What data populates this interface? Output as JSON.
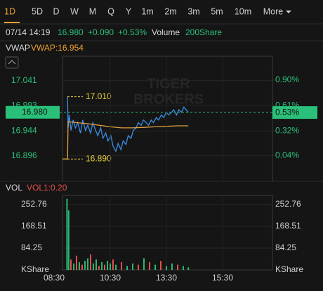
{
  "tabs": [
    "1D",
    "5D",
    "D",
    "W",
    "M",
    "Q",
    "Y",
    "1m",
    "2m",
    "3m",
    "5m",
    "10m",
    "More"
  ],
  "header": {
    "datetime": "07/14 14:19",
    "price": "16.980",
    "change": "+0.090",
    "change_pct": "+0.53%",
    "volume_label": "Volume",
    "volume": "200Share"
  },
  "watermark": [
    "TIGER",
    "BROKERS"
  ],
  "chart_data": [
    {
      "type": "line",
      "indicator": "VWAP",
      "indicator_value": "VWAP:16.954",
      "xlim": [
        0,
        400
      ],
      "ylim": [
        16.847,
        17.088
      ],
      "yticks": [
        17.041,
        16.993,
        16.944,
        16.896
      ],
      "y2lim": [
        -0.255,
        1.172
      ],
      "y2ticks": [
        {
          "value": 0.9,
          "label": "0.90%"
        },
        {
          "value": 0.61,
          "label": "0.61%"
        },
        {
          "value": 0.32,
          "label": "0.32%"
        },
        {
          "value": 0.04,
          "label": "0.04%"
        }
      ],
      "grid": true,
      "high": {
        "value": 17.01,
        "label": "17.010"
      },
      "low": {
        "value": 16.89,
        "label": "16.890"
      },
      "last": {
        "value": 16.98,
        "label": "16.980"
      },
      "last_pct": {
        "value": 0.53,
        "label": "0.53%"
      },
      "series": [
        {
          "name": "Price",
          "color": "#3a8ee6",
          "x": [
            24,
            25,
            27,
            30,
            34,
            38,
            42,
            47,
            51,
            56,
            60,
            65,
            69,
            74,
            78,
            83,
            87,
            92,
            96,
            101,
            105,
            110,
            114,
            119,
            123,
            128,
            132,
            137,
            141,
            146,
            150,
            155,
            159,
            164,
            168,
            173,
            177,
            182,
            186,
            191,
            195,
            200,
            204,
            209,
            213,
            218,
            222,
            227,
            231,
            235,
            239
          ],
          "values": [
            17.01,
            16.95,
            16.975,
            16.945,
            16.965,
            16.95,
            16.96,
            16.94,
            16.965,
            16.945,
            16.955,
            16.94,
            16.96,
            16.945,
            16.935,
            16.95,
            16.93,
            16.94,
            16.925,
            16.935,
            16.915,
            16.905,
            16.92,
            16.908,
            16.925,
            16.918,
            16.935,
            16.93,
            16.945,
            16.95,
            16.96,
            16.955,
            16.965,
            16.96,
            16.955,
            16.965,
            16.96,
            16.97,
            16.965,
            16.975,
            16.97,
            16.98,
            16.975,
            16.98,
            16.985,
            16.975,
            16.985,
            16.98,
            16.99,
            16.985,
            16.98
          ]
        },
        {
          "name": "VWAP",
          "color": "#e0a040",
          "x": [
            15,
            24,
            25,
            40,
            60,
            80,
            100,
            120,
            140,
            160,
            180,
            200,
            220,
            239
          ],
          "values": [
            16.89,
            16.89,
            16.962,
            16.96,
            16.958,
            16.955,
            16.952,
            16.95,
            16.95,
            16.951,
            16.952,
            16.953,
            16.954,
            16.954
          ]
        }
      ]
    },
    {
      "type": "bar",
      "indicator": "VOL",
      "indicator_value": "VOL1:0.20",
      "unit": "KShare",
      "xlim": [
        0,
        400
      ],
      "ylim": [
        0,
        288
      ],
      "xticks": [
        {
          "value": 0,
          "label": "08:30"
        },
        {
          "value": 100,
          "label": "10:30"
        },
        {
          "value": 200,
          "label": "13:30"
        },
        {
          "value": 300,
          "label": "15:30"
        }
      ],
      "yticks": [
        252.76,
        168.51,
        84.25
      ],
      "grid": true,
      "x": [
        23,
        26,
        30,
        35,
        40,
        45,
        50,
        55,
        60,
        65,
        70,
        75,
        80,
        85,
        90,
        95,
        100,
        105,
        110,
        120,
        130,
        140,
        150,
        160,
        170,
        180,
        190,
        200,
        210,
        220,
        230,
        239
      ],
      "values": [
        275,
        230,
        40,
        25,
        55,
        30,
        20,
        35,
        45,
        60,
        25,
        40,
        15,
        30,
        20,
        35,
        25,
        40,
        20,
        30,
        15,
        25,
        20,
        45,
        30,
        20,
        35,
        15,
        25,
        20,
        15,
        10
      ],
      "colors": [
        "#2bb673",
        "#2bb673",
        "#e0514b",
        "#2bb673",
        "#e0514b",
        "#2bb673",
        "#e0514b",
        "#2bb673",
        "#2bb673",
        "#e0514b",
        "#2bb673",
        "#2bb673",
        "#e0514b",
        "#2bb673",
        "#e0514b",
        "#2bb673",
        "#2bb673",
        "#e0514b",
        "#2bb673",
        "#e0514b",
        "#2bb673",
        "#2bb673",
        "#e0514b",
        "#2bb673",
        "#e0514b",
        "#2bb673",
        "#e0514b",
        "#2bb673",
        "#2bb673",
        "#e0514b",
        "#2bb673",
        "#2bb673"
      ]
    }
  ]
}
